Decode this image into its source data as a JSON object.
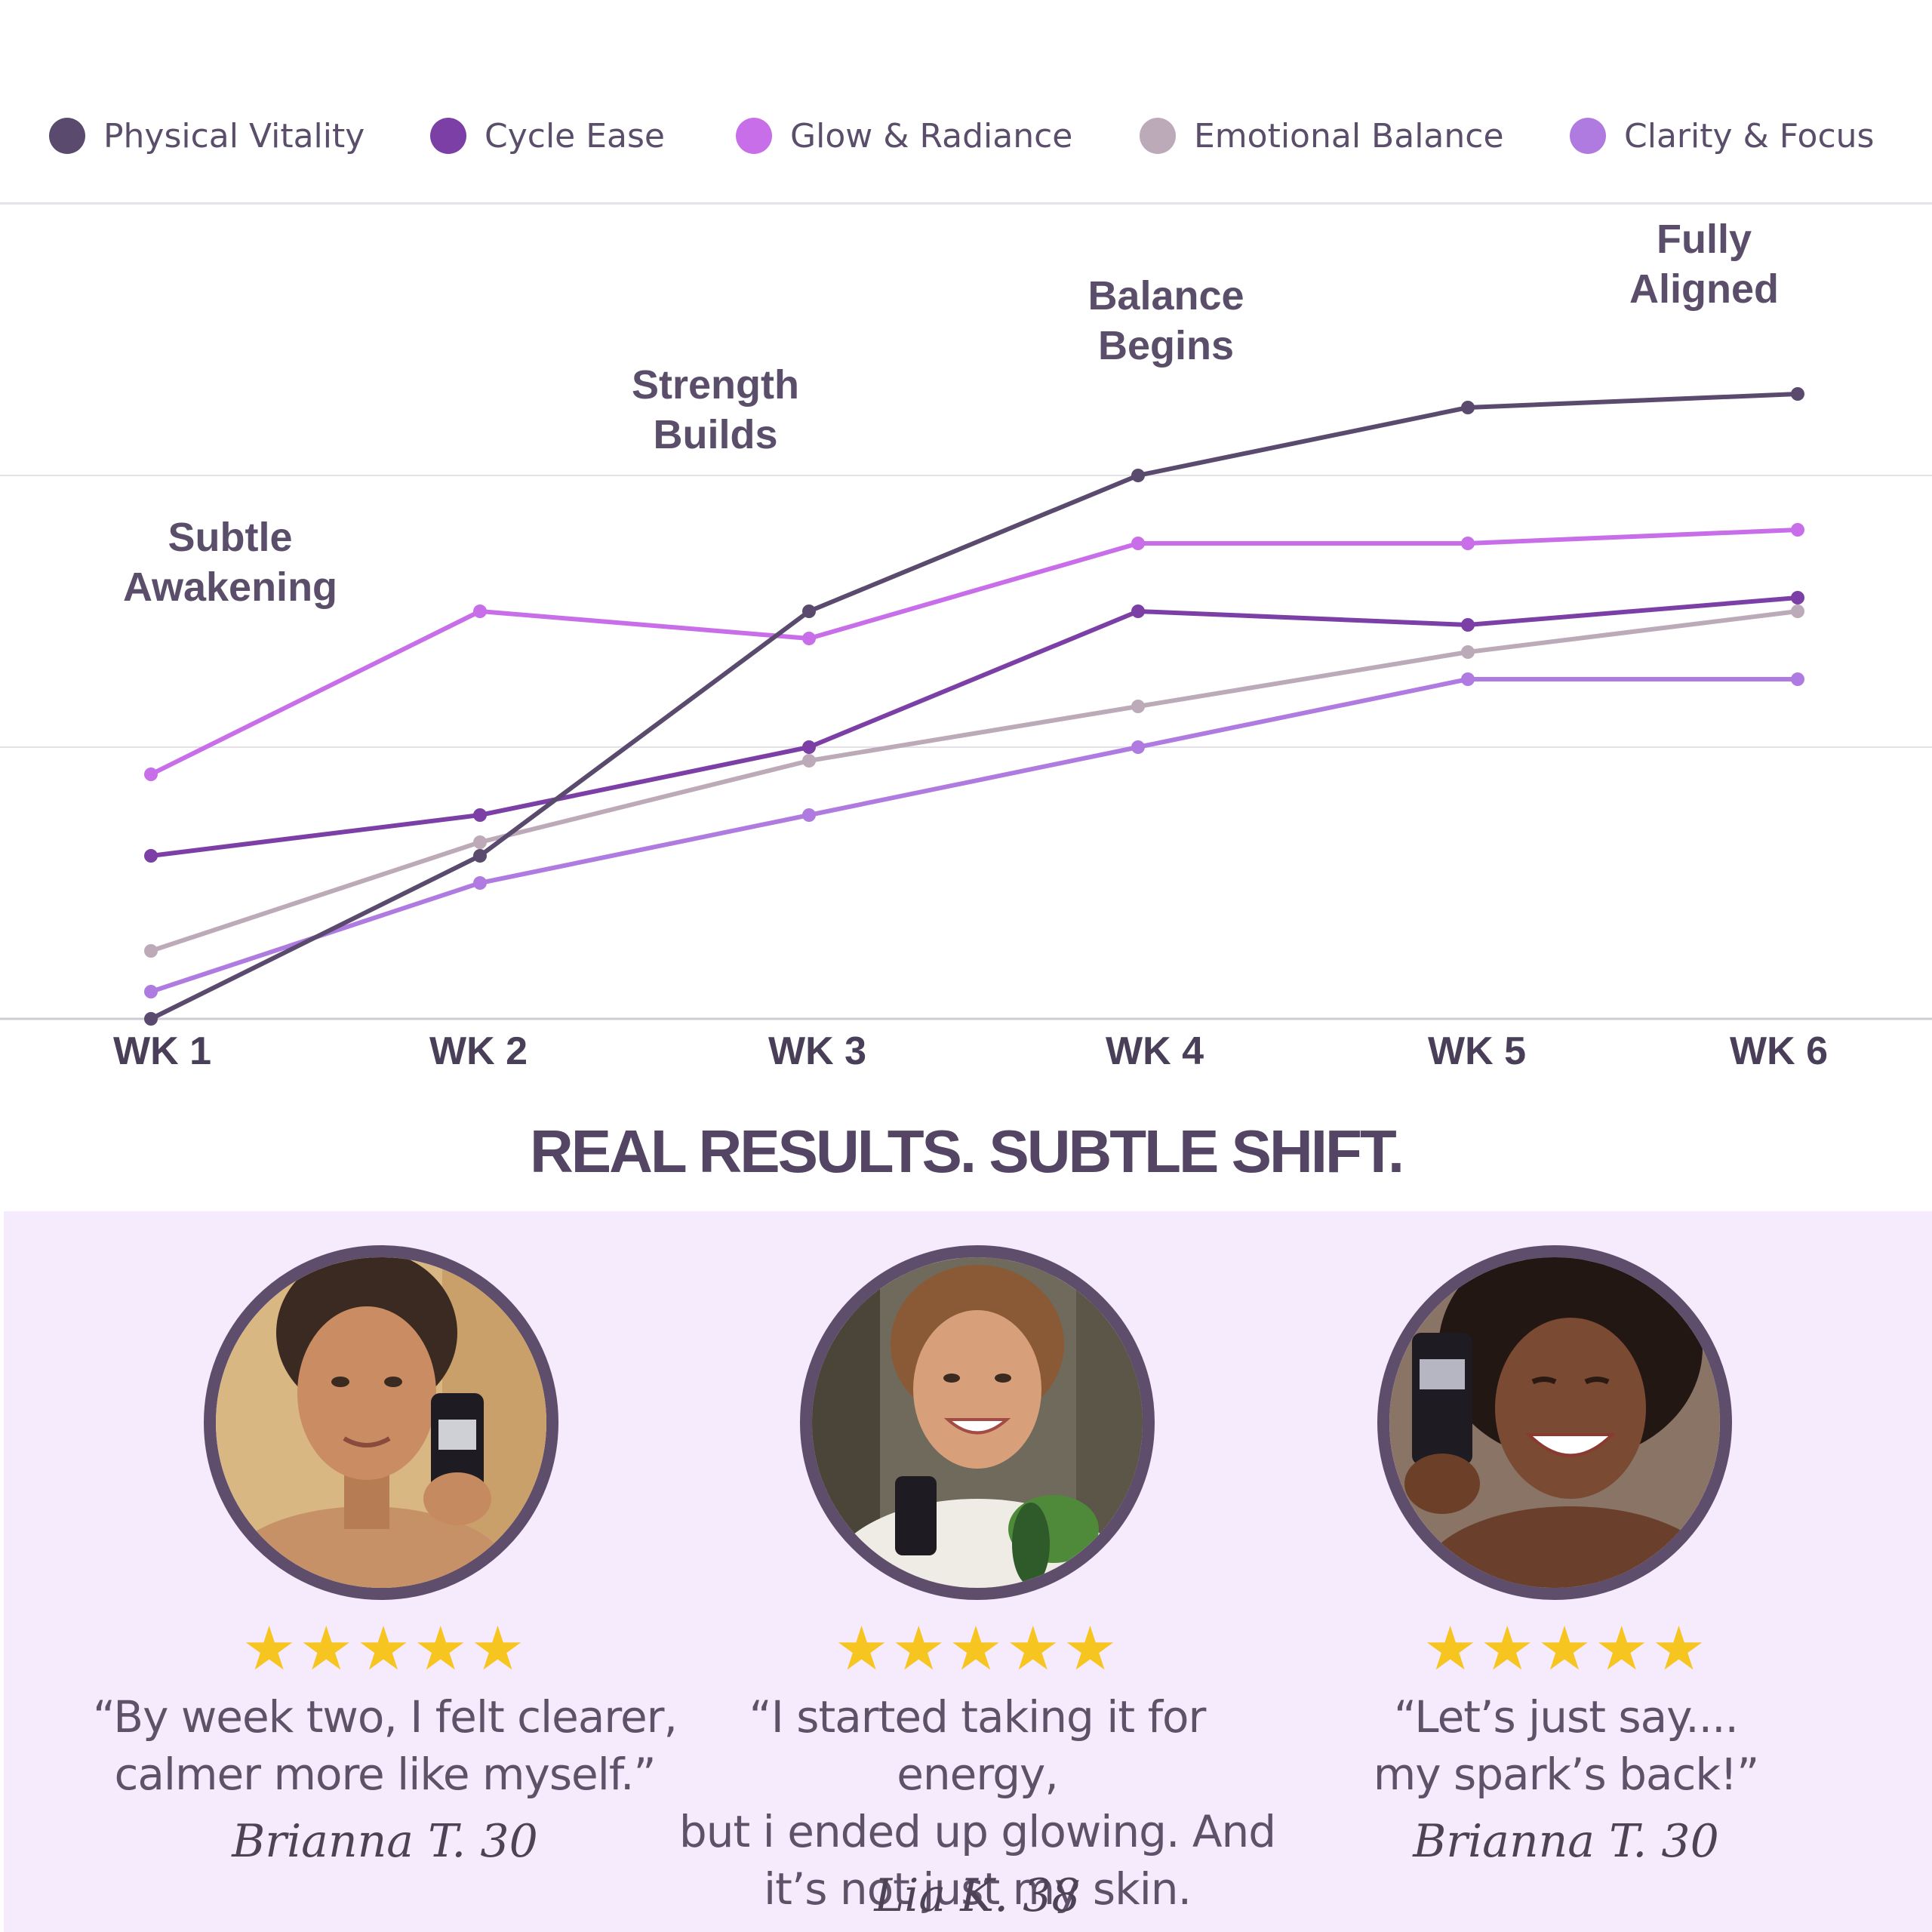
{
  "chart_data": {
    "type": "line",
    "x": [
      "WK 1",
      "WK 2",
      "WK 3",
      "WK 4",
      "WK 5",
      "WK 6"
    ],
    "ylim": [
      0,
      3
    ],
    "grid": true,
    "legend_position": "top",
    "series": [
      {
        "name": "Physical Vitality",
        "color": "#5a4a6e",
        "values": [
          0,
          0.6,
          1.5,
          2.0,
          2.25,
          2.3
        ]
      },
      {
        "name": "Cycle Ease",
        "color": "#7b3fa6",
        "values": [
          0.6,
          0.75,
          1.0,
          1.5,
          1.45,
          1.55
        ]
      },
      {
        "name": "Glow & Radiance",
        "color": "#c76ee8",
        "values": [
          0.9,
          1.5,
          1.4,
          1.75,
          1.75,
          1.8
        ]
      },
      {
        "name": "Emotional Balance",
        "color": "#bcaab8",
        "values": [
          0.25,
          0.65,
          0.95,
          1.15,
          1.35,
          1.5
        ]
      },
      {
        "name": "Clarity & Focus",
        "color": "#b07be0",
        "values": [
          0.1,
          0.5,
          0.75,
          1.0,
          1.25,
          1.25
        ]
      }
    ],
    "annotations": [
      {
        "x": "WK 1",
        "lines": [
          "Subtle",
          "Awakening"
        ]
      },
      {
        "x": "WK 3",
        "lines": [
          "Strength",
          "Builds"
        ]
      },
      {
        "x": "WK 4",
        "lines": [
          "Balance",
          "Begins"
        ]
      },
      {
        "x": "WK 6",
        "lines": [
          "Fully",
          "Aligned"
        ]
      }
    ]
  },
  "headline": "REAL RESULTS. SUBTLE SHIFT.",
  "reviews": [
    {
      "rating": 5,
      "stars": "★★★★★",
      "quote_lines": [
        "“By week two, I felt clearer,",
        "calmer more like myself.”"
      ],
      "signature": "Brianna T. 30"
    },
    {
      "rating": 5,
      "stars": "★★★★★",
      "quote_lines": [
        "“I started taking it for energy,",
        "but i ended up glowing. And",
        "it’s not just my skin."
      ],
      "signature": "Lia K. 38"
    },
    {
      "rating": 5,
      "stars": "★★★★★",
      "quote_lines": [
        "“Let’s just say....",
        "my spark’s back!”"
      ],
      "signature": "Brianna T. 30"
    }
  ],
  "colors": {
    "accent": "#544564",
    "review_background": "#f6eafd",
    "star": "#f7c520"
  }
}
